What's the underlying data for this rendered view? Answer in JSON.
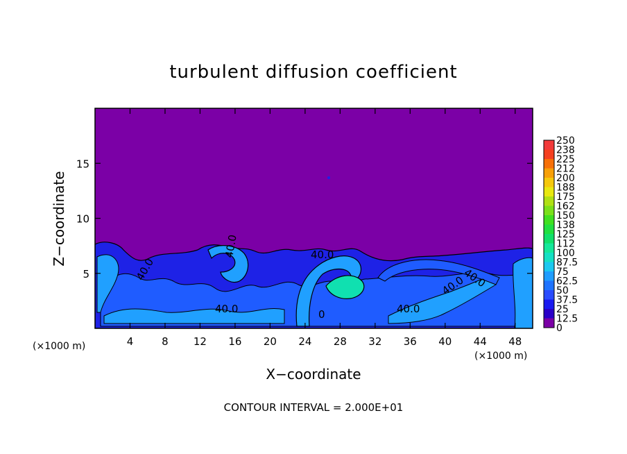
{
  "chart_data": {
    "type": "heatmap",
    "title": "turbulent diffusion coefficient",
    "xlabel": "X−coordinate",
    "ylabel": "Z−coordinate",
    "x_unit": "(×1000 m)",
    "xlim": [
      0,
      50
    ],
    "ylim": [
      0,
      20
    ],
    "x_ticks": [
      4,
      8,
      12,
      16,
      20,
      24,
      28,
      32,
      36,
      40,
      44,
      48
    ],
    "y_ticks": [
      5,
      10,
      15
    ],
    "footer": "CONTOUR INTERVAL = 2.000E+01",
    "contour_labels": [
      "40.0",
      "40.0",
      "40.0",
      "40.0",
      "40.0",
      "0",
      "40.0",
      "40.0"
    ],
    "colorbar": {
      "levels": [
        "0",
        "12.5",
        "25",
        "37.5",
        "50",
        "62.5",
        "75",
        "87.5",
        "100",
        "112",
        "125",
        "138",
        "150",
        "162",
        "175",
        "188",
        "200",
        "212",
        "225",
        "238",
        "250"
      ],
      "colors": [
        "#7b00a6",
        "#2a00c8",
        "#1a1af0",
        "#2a4cff",
        "#1e73ff",
        "#1f9dff",
        "#1bc8f0",
        "#14e0c4",
        "#14e89a",
        "#10e06a",
        "#20e040",
        "#40e020",
        "#7ae01a",
        "#b0e014",
        "#e8e810",
        "#f5c80c",
        "#f7a008",
        "#f77008",
        "#f54020",
        "#f23a3a",
        "#f08080"
      ]
    },
    "background_value_color": "#7b00a6",
    "field_colors": {
      "low": "#1e22e6",
      "mid": "#1f5cff",
      "high": "#20a0ff",
      "peak": "#10e0b0"
    }
  }
}
